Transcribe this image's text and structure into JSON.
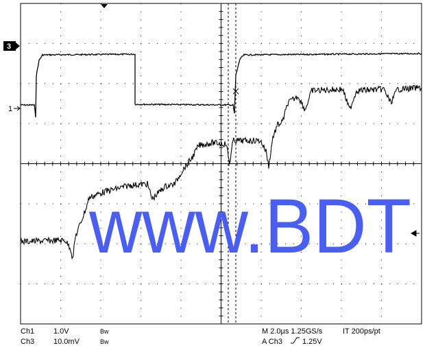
{
  "markers": {
    "ch3": "3",
    "ch1": "1"
  },
  "watermark": "www.BDT",
  "status": {
    "ch1_label": "Ch1",
    "ch1_scale": "1.0V",
    "ch1_bw": "Bw",
    "ch3_label": "Ch3",
    "ch3_scale": "10.0mV",
    "ch3_bw": "Bw",
    "timebase": "M 2.0µs 1.25GS/s",
    "resolution": "IT 200ps/pt",
    "trigger_source": "A  Ch3",
    "trigger_level": "1.25V"
  }
}
